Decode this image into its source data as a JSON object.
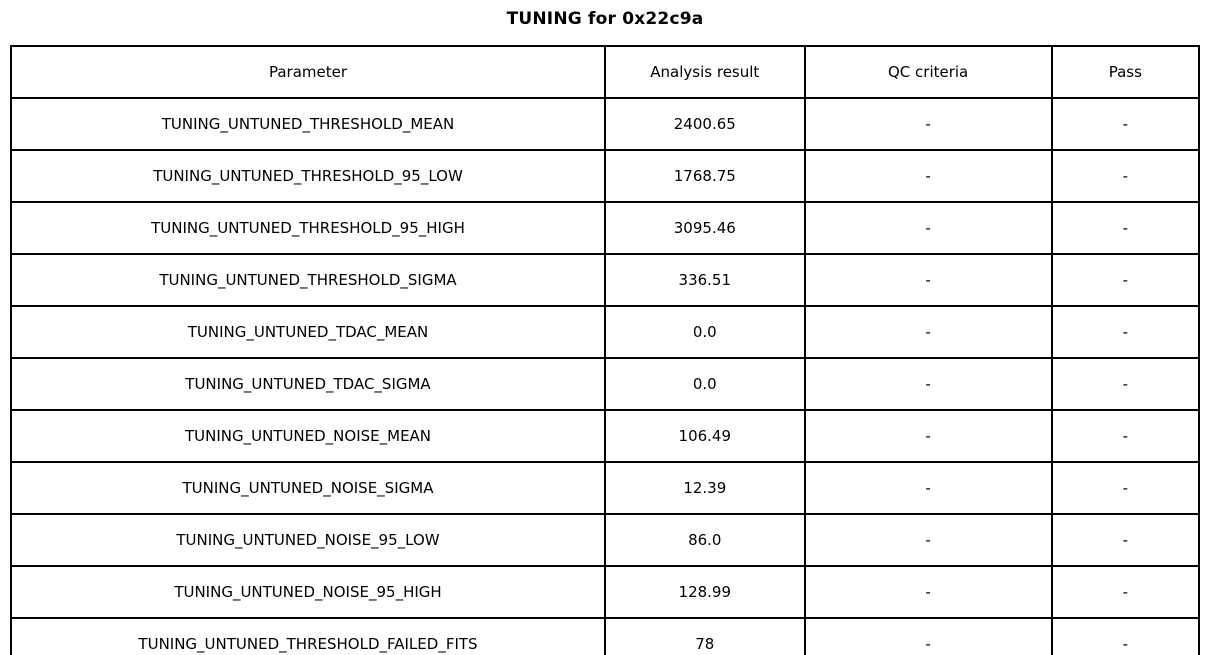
{
  "title": "TUNING for 0x22c9a",
  "table": {
    "headers": {
      "parameter": "Parameter",
      "analysis_result": "Analysis result",
      "qc_criteria": "QC criteria",
      "pass": "Pass"
    },
    "rows": [
      {
        "parameter": "TUNING_UNTUNED_THRESHOLD_MEAN",
        "analysis_result": "2400.65",
        "qc_criteria": "-",
        "pass": "-"
      },
      {
        "parameter": "TUNING_UNTUNED_THRESHOLD_95_LOW",
        "analysis_result": "1768.75",
        "qc_criteria": "-",
        "pass": "-"
      },
      {
        "parameter": "TUNING_UNTUNED_THRESHOLD_95_HIGH",
        "analysis_result": "3095.46",
        "qc_criteria": "-",
        "pass": "-"
      },
      {
        "parameter": "TUNING_UNTUNED_THRESHOLD_SIGMA",
        "analysis_result": "336.51",
        "qc_criteria": "-",
        "pass": "-"
      },
      {
        "parameter": "TUNING_UNTUNED_TDAC_MEAN",
        "analysis_result": "0.0",
        "qc_criteria": "-",
        "pass": "-"
      },
      {
        "parameter": "TUNING_UNTUNED_TDAC_SIGMA",
        "analysis_result": "0.0",
        "qc_criteria": "-",
        "pass": "-"
      },
      {
        "parameter": "TUNING_UNTUNED_NOISE_MEAN",
        "analysis_result": "106.49",
        "qc_criteria": "-",
        "pass": "-"
      },
      {
        "parameter": "TUNING_UNTUNED_NOISE_SIGMA",
        "analysis_result": "12.39",
        "qc_criteria": "-",
        "pass": "-"
      },
      {
        "parameter": "TUNING_UNTUNED_NOISE_95_LOW",
        "analysis_result": "86.0",
        "qc_criteria": "-",
        "pass": "-"
      },
      {
        "parameter": "TUNING_UNTUNED_NOISE_95_HIGH",
        "analysis_result": "128.99",
        "qc_criteria": "-",
        "pass": "-"
      },
      {
        "parameter": "TUNING_UNTUNED_THRESHOLD_FAILED_FITS",
        "analysis_result": "78",
        "qc_criteria": "-",
        "pass": "-"
      }
    ]
  },
  "colors": {
    "border": "#000000",
    "text": "#000000",
    "background": "#ffffff"
  },
  "chart_data": {
    "type": "table",
    "title": "TUNING for 0x22c9a",
    "columns": [
      "Parameter",
      "Analysis result",
      "QC criteria",
      "Pass"
    ],
    "rows": [
      [
        "TUNING_UNTUNED_THRESHOLD_MEAN",
        "2400.65",
        "-",
        "-"
      ],
      [
        "TUNING_UNTUNED_THRESHOLD_95_LOW",
        "1768.75",
        "-",
        "-"
      ],
      [
        "TUNING_UNTUNED_THRESHOLD_95_HIGH",
        "3095.46",
        "-",
        "-"
      ],
      [
        "TUNING_UNTUNED_THRESHOLD_SIGMA",
        "336.51",
        "-",
        "-"
      ],
      [
        "TUNING_UNTUNED_TDAC_MEAN",
        "0.0",
        "-",
        "-"
      ],
      [
        "TUNING_UNTUNED_TDAC_SIGMA",
        "0.0",
        "-",
        "-"
      ],
      [
        "TUNING_UNTUNED_NOISE_MEAN",
        "106.49",
        "-",
        "-"
      ],
      [
        "TUNING_UNTUNED_NOISE_SIGMA",
        "12.39",
        "-",
        "-"
      ],
      [
        "TUNING_UNTUNED_NOISE_95_LOW",
        "86.0",
        "-",
        "-"
      ],
      [
        "TUNING_UNTUNED_NOISE_95_HIGH",
        "128.99",
        "-",
        "-"
      ],
      [
        "TUNING_UNTUNED_THRESHOLD_FAILED_FITS",
        "78",
        "-",
        "-"
      ]
    ],
    "legend": false,
    "grid": true
  }
}
